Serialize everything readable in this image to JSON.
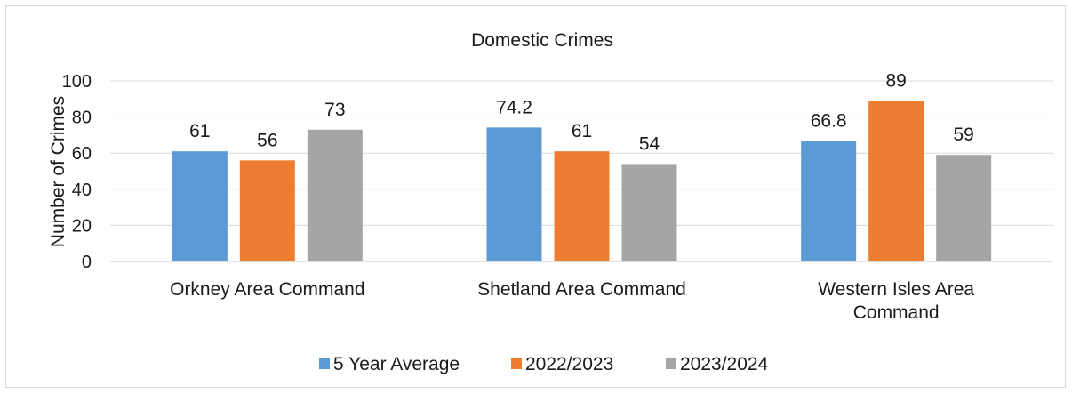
{
  "chart_data": {
    "type": "bar",
    "title": "Domestic Crimes",
    "xlabel": "",
    "ylabel": "Number of Crimes",
    "ylim": [
      0,
      100
    ],
    "yticks": [
      0,
      20,
      40,
      60,
      80,
      100
    ],
    "grid": true,
    "legend_position": "bottom",
    "categories": [
      [
        "Orkney Area Command"
      ],
      [
        "Shetland Area Command"
      ],
      [
        "Western Isles Area",
        "Command"
      ]
    ],
    "series": [
      {
        "name": "5 Year Average",
        "color": "#5b9bd5",
        "values": [
          61,
          74.2,
          66.8
        ],
        "labels": [
          "61",
          "74.2",
          "66.8"
        ]
      },
      {
        "name": "2022/2023",
        "color": "#ed7d31",
        "values": [
          56,
          61,
          89
        ],
        "labels": [
          "56",
          "61",
          "89"
        ]
      },
      {
        "name": "2023/2024",
        "color": "#a5a5a5",
        "values": [
          73,
          54,
          59
        ],
        "labels": [
          "73",
          "54",
          "59"
        ]
      }
    ]
  }
}
